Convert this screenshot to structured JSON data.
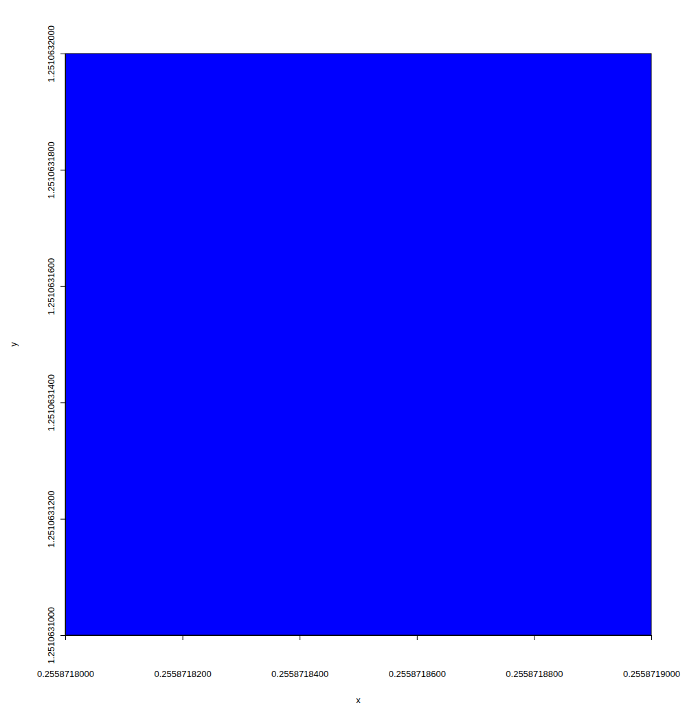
{
  "chart_data": {
    "type": "mandelbrot",
    "x_label": "x",
    "y_label": "y",
    "xlim": [
      0.2558718,
      0.2558719
    ],
    "xticks": [
      {
        "value": 0.2558718,
        "label": "0.2558718000"
      },
      {
        "value": 0.25587182,
        "label": "0.2558718200"
      },
      {
        "value": 0.25587184,
        "label": "0.2558718400"
      },
      {
        "value": 0.25587186,
        "label": "0.2558718600"
      },
      {
        "value": 0.25587188,
        "label": "0.2558718800"
      },
      {
        "value": 0.2558719,
        "label": "0.2558719000"
      }
    ],
    "ylim": [
      1.2510631,
      1.2510632
    ],
    "yticks": [
      {
        "value": 1.2510631,
        "label": "1.2510631000"
      },
      {
        "value": 1.25106312,
        "label": "1.2510631200"
      },
      {
        "value": 1.25106314,
        "label": "1.2510631400"
      },
      {
        "value": 1.25106316,
        "label": "1.2510631600"
      },
      {
        "value": 1.25106318,
        "label": "1.2510631800"
      },
      {
        "value": 1.2510632,
        "label": "1.2510632000"
      }
    ],
    "max_iter": 3000,
    "color_stops": [
      0,
      0.58,
      0.78,
      0.9,
      0.96
    ],
    "colors": [
      "#ffb6c1",
      "#c9a0dc",
      "#9d8ae6",
      "#6a5cf0",
      "#0000ff"
    ],
    "inside_color": "#000000"
  }
}
